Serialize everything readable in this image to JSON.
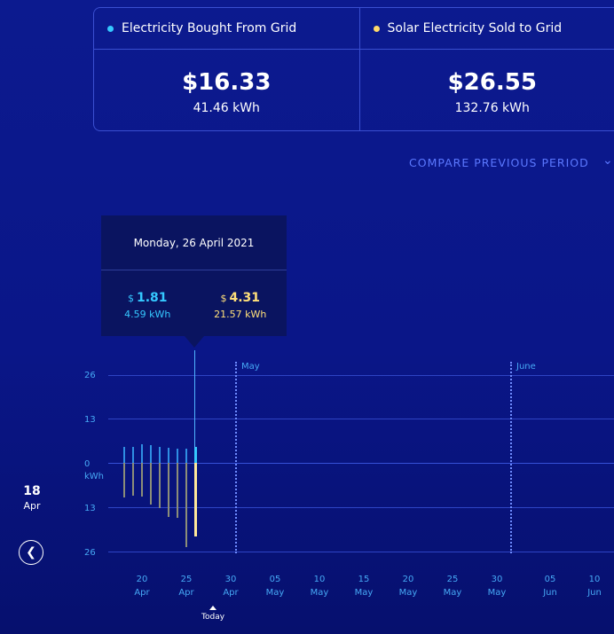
{
  "summary": {
    "bought": {
      "label": "Electricity Bought From Grid",
      "amount": "$16.33",
      "kwh": "41.46 kWh",
      "color": "#35c8ff"
    },
    "sold": {
      "label": "Solar Electricity Sold to Grid",
      "amount": "$26.55",
      "kwh": "132.76 kWh",
      "color": "#ffd96a"
    }
  },
  "compare": {
    "label": "COMPARE PREVIOUS PERIOD",
    "icon": "chevron-down-icon"
  },
  "tooltip": {
    "date": "Monday, 26 April 2021",
    "bought": {
      "currency": "$",
      "amount": "1.81",
      "kwh": "4.59 kWh"
    },
    "sold": {
      "currency": "$",
      "amount": "4.31",
      "kwh": "21.57 kWh"
    }
  },
  "sidebar": {
    "day": "18",
    "month": "Apr",
    "prev_icon": "chevron-left-icon"
  },
  "today_label": "Today",
  "chart_data": {
    "type": "bar",
    "y_ticks": [
      "26",
      "13",
      "0",
      "13",
      "26"
    ],
    "y_unit": "kWh",
    "ylim": [
      -26,
      26
    ],
    "month_markers": [
      "May",
      "June"
    ],
    "x_ticks": [
      {
        "day": "20",
        "month": "Apr"
      },
      {
        "day": "25",
        "month": "Apr"
      },
      {
        "day": "30",
        "month": "Apr"
      },
      {
        "day": "05",
        "month": "May"
      },
      {
        "day": "10",
        "month": "May"
      },
      {
        "day": "15",
        "month": "May"
      },
      {
        "day": "20",
        "month": "May"
      },
      {
        "day": "25",
        "month": "May"
      },
      {
        "day": "30",
        "month": "May"
      },
      {
        "day": "05",
        "month": "Jun"
      },
      {
        "day": "10",
        "month": "Jun"
      }
    ],
    "bars": [
      {
        "date": "18 Apr",
        "bought": 4.6,
        "sold": 10.2
      },
      {
        "date": "19 Apr",
        "bought": 4.8,
        "sold": 9.6
      },
      {
        "date": "20 Apr",
        "bought": 5.5,
        "sold": 9.8
      },
      {
        "date": "21 Apr",
        "bought": 5.2,
        "sold": 12.2
      },
      {
        "date": "22 Apr",
        "bought": 4.6,
        "sold": 13.2
      },
      {
        "date": "23 Apr",
        "bought": 4.3,
        "sold": 15.8
      },
      {
        "date": "24 Apr",
        "bought": 4.1,
        "sold": 16.2
      },
      {
        "date": "25 Apr",
        "bought": 4.1,
        "sold": 24.8
      },
      {
        "date": "26 Apr",
        "bought": 4.59,
        "sold": 21.57
      }
    ],
    "colors": {
      "bought": "#2f8fe3",
      "sold": "#8c8e78",
      "bought_selected": "#35c8ff",
      "sold_selected": "#ffe89a"
    },
    "selected_index": 8
  }
}
